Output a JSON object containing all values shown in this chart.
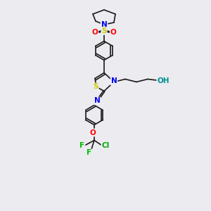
{
  "background_color": "#ebebf0",
  "bond_color": "#1a1a1a",
  "atom_colors": {
    "N": "#0000ee",
    "S": "#cccc00",
    "O": "#ff0000",
    "F": "#00bb00",
    "Cl": "#00aa00",
    "OH": "#009090"
  },
  "figsize": [
    3.0,
    3.0
  ],
  "dpi": 100
}
